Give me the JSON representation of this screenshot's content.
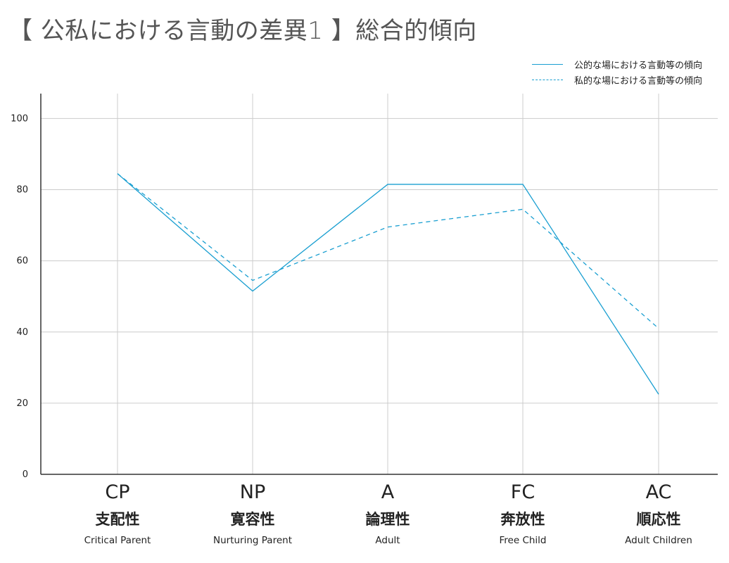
{
  "title": "【 公私における言動の差異1 】総合的傾向",
  "colors": {
    "series": "#1a9fd1",
    "grid": "#cccccc",
    "axis": "#333333"
  },
  "chart_data": {
    "type": "line",
    "title": "【 公私における言動の差異1 】総合的傾向",
    "xlabel": "",
    "ylabel": "",
    "ylim": [
      0,
      107
    ],
    "y_ticks": [
      0,
      20,
      40,
      60,
      80,
      100
    ],
    "grid": true,
    "legend_position": "top-right",
    "categories": [
      {
        "code": "CP",
        "jp": "支配性",
        "en": "Critical Parent"
      },
      {
        "code": "NP",
        "jp": "寛容性",
        "en": "Nurturing Parent"
      },
      {
        "code": "A",
        "jp": "論理性",
        "en": "Adult"
      },
      {
        "code": "FC",
        "jp": "奔放性",
        "en": "Free Child"
      },
      {
        "code": "AC",
        "jp": "順応性",
        "en": "Adult Children"
      }
    ],
    "series": [
      {
        "name": "公的な場における言動等の傾向",
        "style": "solid",
        "values": [
          84.5,
          51.5,
          81.5,
          81.5,
          22.5
        ]
      },
      {
        "name": "私的な場における言動等の傾向",
        "style": "dashed",
        "values": [
          84.5,
          54.5,
          69.5,
          74.5,
          41
        ]
      }
    ]
  }
}
